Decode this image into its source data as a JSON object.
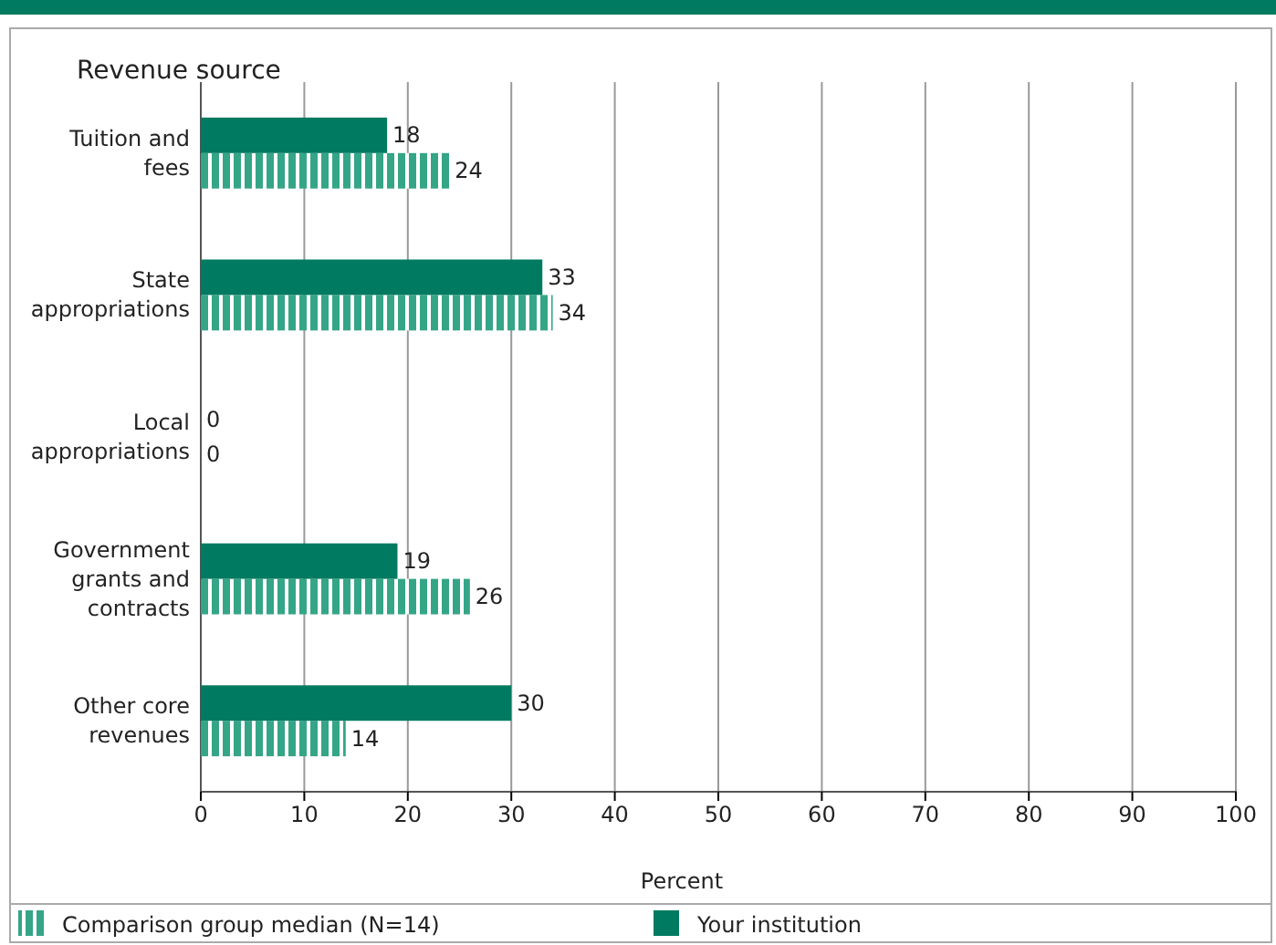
{
  "chart_data": {
    "type": "bar",
    "orientation": "horizontal",
    "ylabel": "Revenue source",
    "xlabel": "Percent",
    "categories": [
      "Tuition and fees",
      "State appropriations",
      "Local appropriations",
      "Government grants and contracts",
      "Other core revenues"
    ],
    "series": [
      {
        "name": "Comparison group median (N=14)",
        "color": "#35a587",
        "values": [
          24,
          34,
          0,
          26,
          14
        ]
      },
      {
        "name": "Your institution",
        "color": "#007a60",
        "values": [
          18,
          33,
          0,
          19,
          30
        ]
      }
    ],
    "xlim": [
      0,
      100
    ],
    "xticks": [
      0,
      10,
      20,
      30,
      40,
      50,
      60,
      70,
      80,
      90,
      100
    ],
    "grid": "x",
    "data_labels": true,
    "legend": "bottom"
  }
}
